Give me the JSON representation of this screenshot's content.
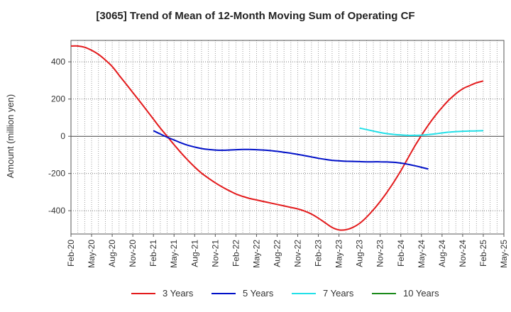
{
  "chart_data": {
    "type": "line",
    "title": "[3065]  Trend of Mean of 12-Month Moving Sum of Operating CF",
    "xlabel": "",
    "ylabel": "Amount (million yen)",
    "ylim": [
      -525,
      515
    ],
    "yticks": [
      400,
      200,
      0,
      -200,
      -400
    ],
    "grid": true,
    "legend_position": "bottom",
    "x_tick_labels": [
      "Feb-20",
      "May-20",
      "Aug-20",
      "Nov-20",
      "Feb-21",
      "May-21",
      "Aug-21",
      "Nov-21",
      "Feb-22",
      "May-22",
      "Aug-22",
      "Nov-22",
      "Feb-23",
      "May-23",
      "Aug-23",
      "Nov-23",
      "Feb-24",
      "May-24",
      "Aug-24",
      "Nov-24",
      "Feb-25",
      "May-25"
    ],
    "series": [
      {
        "name": "3 Years",
        "color": "#e31a1c",
        "points": [
          [
            "Feb-20",
            485
          ],
          [
            "Mar-20",
            485
          ],
          [
            "Apr-20",
            478
          ],
          [
            "May-20",
            462
          ],
          [
            "Jun-20",
            440
          ],
          [
            "Jul-20",
            410
          ],
          [
            "Aug-20",
            375
          ],
          [
            "Sep-20",
            328
          ],
          [
            "Oct-20",
            282
          ],
          [
            "Nov-20",
            235
          ],
          [
            "Dec-20",
            188
          ],
          [
            "Jan-21",
            140
          ],
          [
            "Feb-21",
            92
          ],
          [
            "Mar-21",
            44
          ],
          [
            "Apr-21",
            0
          ],
          [
            "May-21",
            -45
          ],
          [
            "Jun-21",
            -88
          ],
          [
            "Jul-21",
            -128
          ],
          [
            "Aug-21",
            -165
          ],
          [
            "Sep-21",
            -198
          ],
          [
            "Oct-21",
            -225
          ],
          [
            "Nov-21",
            -250
          ],
          [
            "Dec-21",
            -272
          ],
          [
            "Jan-22",
            -292
          ],
          [
            "Feb-22",
            -310
          ],
          [
            "Mar-22",
            -323
          ],
          [
            "Apr-22",
            -334
          ],
          [
            "May-22",
            -342
          ],
          [
            "Jun-22",
            -350
          ],
          [
            "Jul-22",
            -358
          ],
          [
            "Aug-22",
            -366
          ],
          [
            "Sep-22",
            -374
          ],
          [
            "Oct-22",
            -382
          ],
          [
            "Nov-22",
            -390
          ],
          [
            "Dec-22",
            -402
          ],
          [
            "Jan-23",
            -418
          ],
          [
            "Feb-23",
            -440
          ],
          [
            "Mar-23",
            -465
          ],
          [
            "Apr-23",
            -490
          ],
          [
            "May-23",
            -503
          ],
          [
            "Jun-23",
            -502
          ],
          [
            "Jul-23",
            -490
          ],
          [
            "Aug-23",
            -468
          ],
          [
            "Sep-23",
            -435
          ],
          [
            "Oct-23",
            -395
          ],
          [
            "Nov-23",
            -350
          ],
          [
            "Dec-23",
            -300
          ],
          [
            "Jan-24",
            -245
          ],
          [
            "Feb-24",
            -185
          ],
          [
            "Mar-24",
            -120
          ],
          [
            "Apr-24",
            -55
          ],
          [
            "May-24",
            5
          ],
          [
            "Jun-24",
            60
          ],
          [
            "Jul-24",
            110
          ],
          [
            "Aug-24",
            155
          ],
          [
            "Sep-24",
            195
          ],
          [
            "Oct-24",
            228
          ],
          [
            "Nov-24",
            255
          ],
          [
            "Dec-24",
            272
          ],
          [
            "Jan-25",
            287
          ],
          [
            "Feb-25",
            297
          ]
        ]
      },
      {
        "name": "5 Years",
        "color": "#0010c8",
        "points": [
          [
            "Feb-21",
            30
          ],
          [
            "Mar-21",
            12
          ],
          [
            "Apr-21",
            -5
          ],
          [
            "May-21",
            -20
          ],
          [
            "Jun-21",
            -35
          ],
          [
            "Jul-21",
            -48
          ],
          [
            "Aug-21",
            -58
          ],
          [
            "Sep-21",
            -66
          ],
          [
            "Oct-21",
            -71
          ],
          [
            "Nov-21",
            -74
          ],
          [
            "Dec-21",
            -75
          ],
          [
            "Jan-22",
            -74
          ],
          [
            "Feb-22",
            -72
          ],
          [
            "Mar-22",
            -71
          ],
          [
            "Apr-22",
            -71
          ],
          [
            "May-22",
            -72
          ],
          [
            "Jun-22",
            -74
          ],
          [
            "Jul-22",
            -77
          ],
          [
            "Aug-22",
            -81
          ],
          [
            "Sep-22",
            -86
          ],
          [
            "Oct-22",
            -91
          ],
          [
            "Nov-22",
            -97
          ],
          [
            "Dec-22",
            -104
          ],
          [
            "Jan-23",
            -111
          ],
          [
            "Feb-23",
            -118
          ],
          [
            "Mar-23",
            -124
          ],
          [
            "Apr-23",
            -129
          ],
          [
            "May-23",
            -132
          ],
          [
            "Jun-23",
            -134
          ],
          [
            "Jul-23",
            -135
          ],
          [
            "Aug-23",
            -136
          ],
          [
            "Sep-23",
            -137
          ],
          [
            "Oct-23",
            -137
          ],
          [
            "Nov-23",
            -137
          ],
          [
            "Dec-23",
            -138
          ],
          [
            "Jan-24",
            -140
          ],
          [
            "Feb-24",
            -144
          ],
          [
            "Mar-24",
            -150
          ],
          [
            "Apr-24",
            -158
          ],
          [
            "May-24",
            -167
          ],
          [
            "Jun-24",
            -176
          ]
        ]
      },
      {
        "name": "7 Years",
        "color": "#22e0e8",
        "points": [
          [
            "Aug-23",
            44
          ],
          [
            "Sep-23",
            36
          ],
          [
            "Oct-23",
            28
          ],
          [
            "Nov-23",
            20
          ],
          [
            "Dec-23",
            14
          ],
          [
            "Jan-24",
            10
          ],
          [
            "Feb-24",
            7
          ],
          [
            "Mar-24",
            5
          ],
          [
            "Apr-24",
            5
          ],
          [
            "May-24",
            6
          ],
          [
            "Jun-24",
            9
          ],
          [
            "Jul-24",
            13
          ],
          [
            "Aug-24",
            18
          ],
          [
            "Sep-24",
            22
          ],
          [
            "Oct-24",
            25
          ],
          [
            "Nov-24",
            27
          ],
          [
            "Dec-24",
            28
          ],
          [
            "Jan-25",
            29
          ],
          [
            "Feb-25",
            30
          ]
        ]
      },
      {
        "name": "10 Years",
        "color": "#1a8a1a",
        "points": []
      }
    ]
  }
}
